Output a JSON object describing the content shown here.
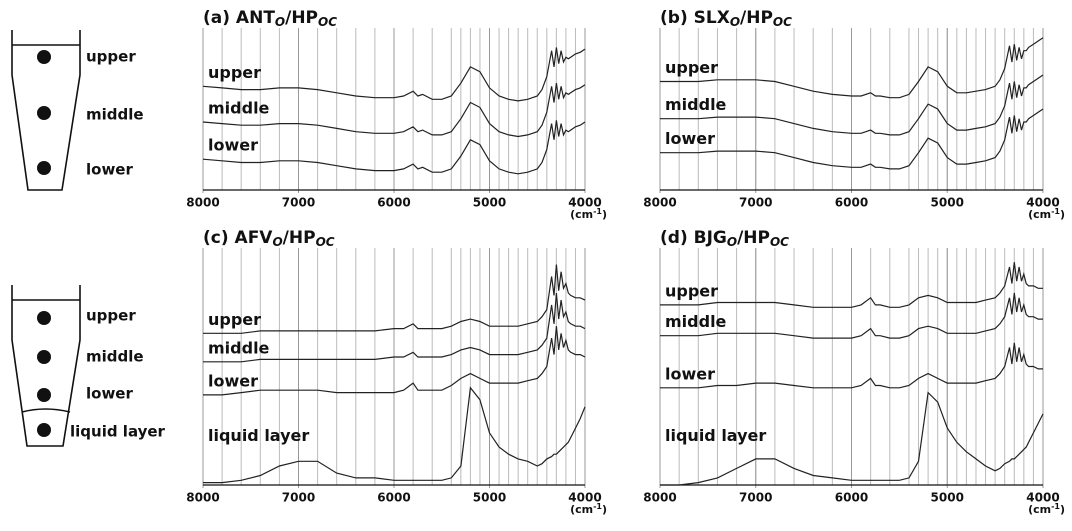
{
  "diagrams": [
    {
      "labels": [
        "upper",
        "middle",
        "lower"
      ]
    },
    {
      "labels": [
        "upper",
        "middle",
        "lower",
        "liquid layer"
      ]
    }
  ],
  "chart_data": [
    {
      "type": "line",
      "title_parts": [
        "(a) ANT",
        "O",
        "/HP",
        "OC"
      ],
      "xlabel_parts": [
        "(cm",
        "-1",
        ")"
      ],
      "xlim": [
        8000,
        4000
      ],
      "ylim": [
        0,
        100
      ],
      "xticks": [
        8000,
        7000,
        6000,
        5000,
        4000
      ],
      "xgrid": [
        7800,
        7600,
        7400,
        7200,
        7000,
        6800,
        6600,
        6400,
        6200,
        6000,
        5800,
        5600,
        5400,
        5300,
        5200,
        5100,
        5000,
        4900,
        4800,
        4700,
        4600,
        4500,
        4400,
        4300,
        4200,
        4100
      ],
      "x": [
        8000,
        7800,
        7600,
        7400,
        7200,
        7000,
        6800,
        6600,
        6400,
        6200,
        6000,
        5900,
        5800,
        5750,
        5700,
        5600,
        5500,
        5400,
        5300,
        5200,
        5100,
        5000,
        4900,
        4800,
        4700,
        4600,
        4500,
        4450,
        4400,
        4350,
        4325,
        4300,
        4275,
        4250,
        4225,
        4200,
        4175,
        4150,
        4100,
        4050,
        4000
      ],
      "series": [
        {
          "name": "upper",
          "color": "#222222",
          "values": [
            64,
            63,
            62,
            62,
            63,
            63,
            62,
            60,
            58,
            57,
            57,
            58,
            61,
            58,
            59,
            56,
            56,
            58,
            66,
            76,
            73,
            63,
            58,
            56,
            55,
            56,
            58,
            62,
            70,
            86,
            76,
            88,
            78,
            86,
            79,
            82,
            81,
            82,
            84,
            85,
            87
          ]
        },
        {
          "name": "middle",
          "color": "#222222",
          "values": [
            42,
            41,
            40,
            40,
            41,
            41,
            40,
            38,
            36,
            35,
            35,
            36,
            39,
            36,
            37,
            34,
            34,
            36,
            44,
            54,
            51,
            41,
            36,
            34,
            33,
            34,
            36,
            40,
            48,
            64,
            54,
            66,
            56,
            64,
            57,
            60,
            59,
            60,
            62,
            63,
            65
          ]
        },
        {
          "name": "lower",
          "color": "#222222",
          "values": [
            19,
            18,
            17,
            17,
            18,
            18,
            17,
            15,
            13,
            12,
            12,
            13,
            16,
            13,
            14,
            11,
            11,
            13,
            21,
            31,
            28,
            18,
            13,
            11,
            10,
            11,
            13,
            17,
            25,
            41,
            31,
            43,
            33,
            41,
            34,
            37,
            36,
            37,
            39,
            40,
            42
          ]
        }
      ]
    },
    {
      "type": "line",
      "title_parts": [
        "(b) SLX",
        "O",
        "/HP",
        "OC"
      ],
      "xlabel_parts": [
        "(cm",
        "-1",
        ")"
      ],
      "xlim": [
        8000,
        4000
      ],
      "ylim": [
        0,
        100
      ],
      "xticks": [
        8000,
        7000,
        6000,
        5000,
        4000
      ],
      "xgrid": [
        7800,
        7600,
        7400,
        7200,
        7000,
        6800,
        6600,
        6400,
        6200,
        6000,
        5800,
        5600,
        5400,
        5300,
        5200,
        5100,
        5000,
        4900,
        4800,
        4700,
        4600,
        4500,
        4400,
        4300,
        4200,
        4100
      ],
      "x": [
        8000,
        7800,
        7600,
        7400,
        7200,
        7000,
        6800,
        6600,
        6400,
        6200,
        6000,
        5900,
        5800,
        5750,
        5700,
        5600,
        5500,
        5400,
        5300,
        5200,
        5100,
        5000,
        4900,
        4800,
        4700,
        4600,
        4500,
        4450,
        4400,
        4350,
        4325,
        4300,
        4275,
        4250,
        4225,
        4200,
        4175,
        4150,
        4100,
        4050,
        4000
      ],
      "series": [
        {
          "name": "upper",
          "color": "#222222",
          "values": [
            67,
            67,
            67,
            68,
            68,
            68,
            67,
            64,
            61,
            59,
            58,
            58,
            60,
            58,
            58,
            57,
            57,
            59,
            67,
            76,
            73,
            64,
            60,
            60,
            61,
            62,
            64,
            68,
            75,
            89,
            79,
            90,
            80,
            88,
            81,
            86,
            86,
            88,
            90,
            92,
            94
          ]
        },
        {
          "name": "middle",
          "color": "#222222",
          "values": [
            44,
            44,
            44,
            45,
            45,
            45,
            44,
            41,
            38,
            36,
            35,
            35,
            37,
            35,
            35,
            34,
            34,
            36,
            44,
            53,
            50,
            41,
            37,
            37,
            38,
            39,
            41,
            45,
            52,
            66,
            56,
            67,
            57,
            65,
            58,
            63,
            63,
            65,
            67,
            69,
            71
          ]
        },
        {
          "name": "lower",
          "color": "#222222",
          "values": [
            23,
            23,
            23,
            24,
            24,
            24,
            23,
            20,
            17,
            15,
            14,
            14,
            16,
            14,
            14,
            13,
            13,
            15,
            23,
            32,
            29,
            20,
            16,
            16,
            17,
            18,
            20,
            24,
            31,
            45,
            35,
            46,
            36,
            44,
            37,
            42,
            42,
            44,
            46,
            48,
            50
          ]
        }
      ]
    },
    {
      "type": "line",
      "title_parts": [
        "(c) AFV",
        "O",
        "/HP",
        "OC"
      ],
      "xlabel_parts": [
        "(cm",
        "-1",
        ")"
      ],
      "xlim": [
        8000,
        4000
      ],
      "ylim": [
        0,
        100
      ],
      "xticks": [
        8000,
        7000,
        6000,
        5000,
        4000
      ],
      "xgrid": [
        7800,
        7600,
        7400,
        7200,
        7000,
        6800,
        6600,
        6400,
        6200,
        6000,
        5800,
        5600,
        5400,
        5300,
        5200,
        5100,
        5000,
        4900,
        4800,
        4700,
        4600,
        4500,
        4400,
        4300,
        4200,
        4100
      ],
      "x": [
        8000,
        7800,
        7600,
        7400,
        7200,
        7000,
        6800,
        6600,
        6400,
        6200,
        6000,
        5900,
        5800,
        5750,
        5700,
        5600,
        5500,
        5400,
        5300,
        5200,
        5100,
        5000,
        4900,
        4800,
        4700,
        4600,
        4500,
        4450,
        4400,
        4350,
        4325,
        4300,
        4275,
        4250,
        4225,
        4200,
        4175,
        4150,
        4100,
        4050,
        4000
      ],
      "series": [
        {
          "name": "upper",
          "color": "#222222",
          "values": [
            64,
            64,
            64,
            65,
            65,
            65,
            65,
            65,
            65,
            65,
            66,
            66,
            68,
            66,
            66,
            66,
            66,
            67,
            69,
            70,
            69,
            67,
            67,
            67,
            67,
            68,
            69,
            71,
            74,
            88,
            80,
            93,
            82,
            90,
            83,
            85,
            81,
            80,
            79,
            79,
            78
          ]
        },
        {
          "name": "middle",
          "color": "#222222",
          "values": [
            52,
            52,
            52,
            53,
            53,
            53,
            53,
            53,
            53,
            53,
            54,
            54,
            56,
            54,
            54,
            54,
            54,
            55,
            57,
            58,
            57,
            55,
            55,
            55,
            55,
            56,
            57,
            59,
            62,
            76,
            68,
            81,
            70,
            78,
            71,
            73,
            69,
            68,
            67,
            67,
            66
          ]
        },
        {
          "name": "lower",
          "color": "#222222",
          "values": [
            38,
            38,
            39,
            40,
            40,
            40,
            40,
            39,
            39,
            39,
            39,
            40,
            43,
            40,
            40,
            40,
            40,
            42,
            45,
            47,
            45,
            43,
            43,
            43,
            43,
            44,
            45,
            47,
            50,
            62,
            55,
            67,
            57,
            64,
            58,
            61,
            57,
            56,
            55,
            55,
            54
          ]
        },
        {
          "name": "liquid layer",
          "color": "#222222",
          "values": [
            1,
            1,
            2,
            4,
            8,
            10,
            10,
            5,
            3,
            3,
            2,
            2,
            2,
            2,
            2,
            2,
            2,
            3,
            8,
            41,
            36,
            22,
            16,
            13,
            11,
            10,
            8,
            9,
            11,
            12,
            13,
            13,
            14,
            15,
            16,
            17,
            18,
            20,
            24,
            28,
            33
          ]
        }
      ]
    },
    {
      "type": "line",
      "title_parts": [
        "(d) BJG",
        "O",
        "/HP",
        "OC"
      ],
      "xlabel_parts": [
        "(cm",
        "-1",
        ")"
      ],
      "xlim": [
        8000,
        4000
      ],
      "ylim": [
        0,
        100
      ],
      "xticks": [
        8000,
        7000,
        6000,
        5000,
        4000
      ],
      "xgrid": [
        7800,
        7600,
        7400,
        7200,
        7000,
        6800,
        6600,
        6400,
        6200,
        6000,
        5800,
        5600,
        5400,
        5300,
        5200,
        5100,
        5000,
        4900,
        4800,
        4700,
        4600,
        4500,
        4400,
        4300,
        4200,
        4100
      ],
      "x": [
        8000,
        7800,
        7600,
        7400,
        7200,
        7000,
        6800,
        6600,
        6400,
        6200,
        6000,
        5900,
        5800,
        5750,
        5700,
        5600,
        5500,
        5400,
        5300,
        5200,
        5100,
        5000,
        4900,
        4800,
        4700,
        4600,
        4500,
        4450,
        4400,
        4350,
        4325,
        4300,
        4275,
        4250,
        4225,
        4200,
        4175,
        4150,
        4100,
        4050,
        4000
      ],
      "series": [
        {
          "name": "upper",
          "color": "#222222",
          "values": [
            76,
            76,
            76,
            77,
            77,
            77,
            77,
            76,
            75,
            75,
            75,
            76,
            79,
            76,
            76,
            75,
            75,
            76,
            79,
            80,
            79,
            77,
            77,
            77,
            77,
            78,
            79,
            81,
            84,
            92,
            85,
            94,
            86,
            92,
            86,
            89,
            85,
            84,
            84,
            83,
            83
          ]
        },
        {
          "name": "middle",
          "color": "#222222",
          "values": [
            63,
            63,
            63,
            64,
            64,
            64,
            64,
            63,
            62,
            62,
            62,
            63,
            66,
            63,
            63,
            62,
            62,
            63,
            66,
            67,
            66,
            64,
            64,
            64,
            64,
            65,
            66,
            68,
            71,
            79,
            72,
            81,
            73,
            79,
            73,
            76,
            72,
            71,
            71,
            70,
            70
          ]
        },
        {
          "name": "lower",
          "color": "#222222",
          "values": [
            41,
            41,
            41,
            42,
            42,
            43,
            43,
            42,
            41,
            41,
            41,
            42,
            45,
            42,
            42,
            41,
            41,
            42,
            45,
            47,
            45,
            43,
            43,
            43,
            43,
            44,
            45,
            47,
            50,
            58,
            51,
            60,
            52,
            58,
            52,
            55,
            51,
            50,
            50,
            49,
            49
          ]
        },
        {
          "name": "liquid layer",
          "color": "#222222",
          "values": [
            0,
            0,
            1,
            3,
            7,
            11,
            11,
            7,
            4,
            3,
            2,
            2,
            2,
            2,
            2,
            2,
            2,
            3,
            10,
            39,
            35,
            24,
            18,
            14,
            11,
            8,
            6,
            7,
            9,
            10,
            11,
            11,
            12,
            13,
            14,
            15,
            16,
            18,
            22,
            26,
            30
          ]
        }
      ]
    }
  ]
}
